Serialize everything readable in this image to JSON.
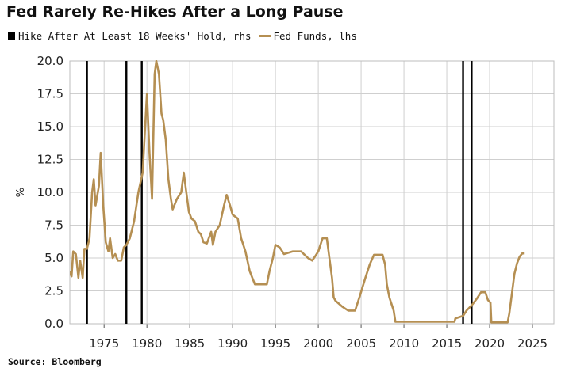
{
  "chart_data": {
    "type": "line",
    "title": "Fed Rarely Re-Hikes After a Long Pause",
    "ylabel": "%",
    "source": "Source: Bloomberg",
    "xlim": [
      1971,
      2027.5
    ],
    "ylim": [
      0,
      20
    ],
    "x_ticks": [
      1975,
      1980,
      1985,
      1990,
      1995,
      2000,
      2005,
      2010,
      2015,
      2020,
      2025
    ],
    "y_ticks": [
      "0.0",
      "2.5",
      "5.0",
      "7.5",
      "10.0",
      "12.5",
      "15.0",
      "17.5",
      "20.0"
    ],
    "grid": true,
    "legend_position": "top-left",
    "series": [
      {
        "name": "Hike After At Least 18 Weeks' Hold, rhs",
        "kind": "vertical-markers",
        "color": "#000000",
        "x": [
          1973.0,
          1977.6,
          1979.4,
          2016.9,
          2017.9
        ]
      },
      {
        "name": "Fed Funds, lhs",
        "kind": "line",
        "color": "#b58f52",
        "points": [
          [
            1971.0,
            4.0
          ],
          [
            1971.2,
            3.6
          ],
          [
            1971.4,
            5.5
          ],
          [
            1971.7,
            5.3
          ],
          [
            1972.0,
            3.5
          ],
          [
            1972.2,
            4.8
          ],
          [
            1972.5,
            3.5
          ],
          [
            1972.7,
            5.7
          ],
          [
            1973.0,
            5.7
          ],
          [
            1973.3,
            6.5
          ],
          [
            1973.6,
            10.0
          ],
          [
            1973.8,
            11.0
          ],
          [
            1974.0,
            9.0
          ],
          [
            1974.4,
            10.5
          ],
          [
            1974.6,
            13.0
          ],
          [
            1974.9,
            9.0
          ],
          [
            1975.2,
            6.2
          ],
          [
            1975.5,
            5.5
          ],
          [
            1975.7,
            6.5
          ],
          [
            1976.0,
            5.0
          ],
          [
            1976.3,
            5.3
          ],
          [
            1976.6,
            4.8
          ],
          [
            1977.0,
            4.8
          ],
          [
            1977.3,
            5.8
          ],
          [
            1977.6,
            6.0
          ],
          [
            1978.0,
            6.5
          ],
          [
            1978.5,
            7.8
          ],
          [
            1979.0,
            10.0
          ],
          [
            1979.5,
            11.5
          ],
          [
            1980.0,
            17.5
          ],
          [
            1980.3,
            13.0
          ],
          [
            1980.6,
            9.5
          ],
          [
            1980.9,
            19.0
          ],
          [
            1981.1,
            20.0
          ],
          [
            1981.4,
            19.0
          ],
          [
            1981.7,
            16.0
          ],
          [
            1981.9,
            15.5
          ],
          [
            1982.2,
            14.0
          ],
          [
            1982.5,
            11.0
          ],
          [
            1982.8,
            9.5
          ],
          [
            1983.0,
            8.7
          ],
          [
            1983.5,
            9.5
          ],
          [
            1984.0,
            10.0
          ],
          [
            1984.3,
            11.5
          ],
          [
            1984.6,
            10.0
          ],
          [
            1984.9,
            8.5
          ],
          [
            1985.2,
            8.0
          ],
          [
            1985.6,
            7.8
          ],
          [
            1986.0,
            7.0
          ],
          [
            1986.3,
            6.8
          ],
          [
            1986.6,
            6.2
          ],
          [
            1987.0,
            6.1
          ],
          [
            1987.5,
            7.0
          ],
          [
            1987.7,
            6.0
          ],
          [
            1988.0,
            7.0
          ],
          [
            1988.5,
            7.5
          ],
          [
            1989.0,
            9.0
          ],
          [
            1989.3,
            9.8
          ],
          [
            1989.7,
            9.0
          ],
          [
            1990.0,
            8.3
          ],
          [
            1990.6,
            8.0
          ],
          [
            1991.0,
            6.5
          ],
          [
            1991.5,
            5.5
          ],
          [
            1992.0,
            4.0
          ],
          [
            1992.6,
            3.0
          ],
          [
            1993.0,
            3.0
          ],
          [
            1993.5,
            3.0
          ],
          [
            1994.0,
            3.0
          ],
          [
            1994.3,
            4.0
          ],
          [
            1994.7,
            5.0
          ],
          [
            1995.0,
            6.0
          ],
          [
            1995.5,
            5.8
          ],
          [
            1996.0,
            5.3
          ],
          [
            1997.0,
            5.5
          ],
          [
            1998.0,
            5.5
          ],
          [
            1998.8,
            5.0
          ],
          [
            1999.3,
            4.8
          ],
          [
            1999.7,
            5.2
          ],
          [
            2000.0,
            5.5
          ],
          [
            2000.5,
            6.5
          ],
          [
            2001.0,
            6.5
          ],
          [
            2001.3,
            5.0
          ],
          [
            2001.6,
            3.5
          ],
          [
            2001.8,
            2.0
          ],
          [
            2002.0,
            1.75
          ],
          [
            2002.8,
            1.3
          ],
          [
            2003.5,
            1.0
          ],
          [
            2004.3,
            1.0
          ],
          [
            2004.8,
            2.0
          ],
          [
            2005.5,
            3.5
          ],
          [
            2006.0,
            4.5
          ],
          [
            2006.5,
            5.25
          ],
          [
            2007.5,
            5.25
          ],
          [
            2007.8,
            4.5
          ],
          [
            2008.0,
            3.0
          ],
          [
            2008.3,
            2.0
          ],
          [
            2008.8,
            1.0
          ],
          [
            2009.0,
            0.15
          ],
          [
            2012.0,
            0.15
          ],
          [
            2015.9,
            0.15
          ],
          [
            2016.0,
            0.4
          ],
          [
            2016.9,
            0.6
          ],
          [
            2017.3,
            1.0
          ],
          [
            2017.9,
            1.4
          ],
          [
            2018.5,
            1.9
          ],
          [
            2019.0,
            2.4
          ],
          [
            2019.5,
            2.4
          ],
          [
            2019.8,
            1.8
          ],
          [
            2020.1,
            1.6
          ],
          [
            2020.2,
            0.1
          ],
          [
            2021.5,
            0.1
          ],
          [
            2022.1,
            0.1
          ],
          [
            2022.3,
            0.8
          ],
          [
            2022.6,
            2.3
          ],
          [
            2022.9,
            3.8
          ],
          [
            2023.2,
            4.6
          ],
          [
            2023.5,
            5.1
          ],
          [
            2023.8,
            5.35
          ],
          [
            2024.0,
            5.35
          ]
        ]
      }
    ]
  }
}
